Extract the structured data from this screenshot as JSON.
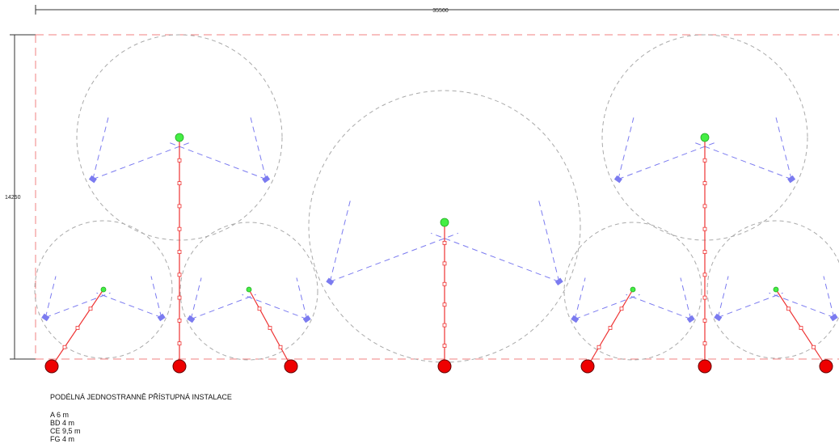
{
  "dimensions": {
    "width": "35500",
    "height": "14250"
  },
  "caption": {
    "title": "PODÉLNÁ JEDNOSTRANNĚ PŘÍSTUPNÁ INSTALACE",
    "items": [
      "A 6 m",
      "BD 4 m",
      "CE 9,5 m",
      "FG 4 m"
    ]
  }
}
